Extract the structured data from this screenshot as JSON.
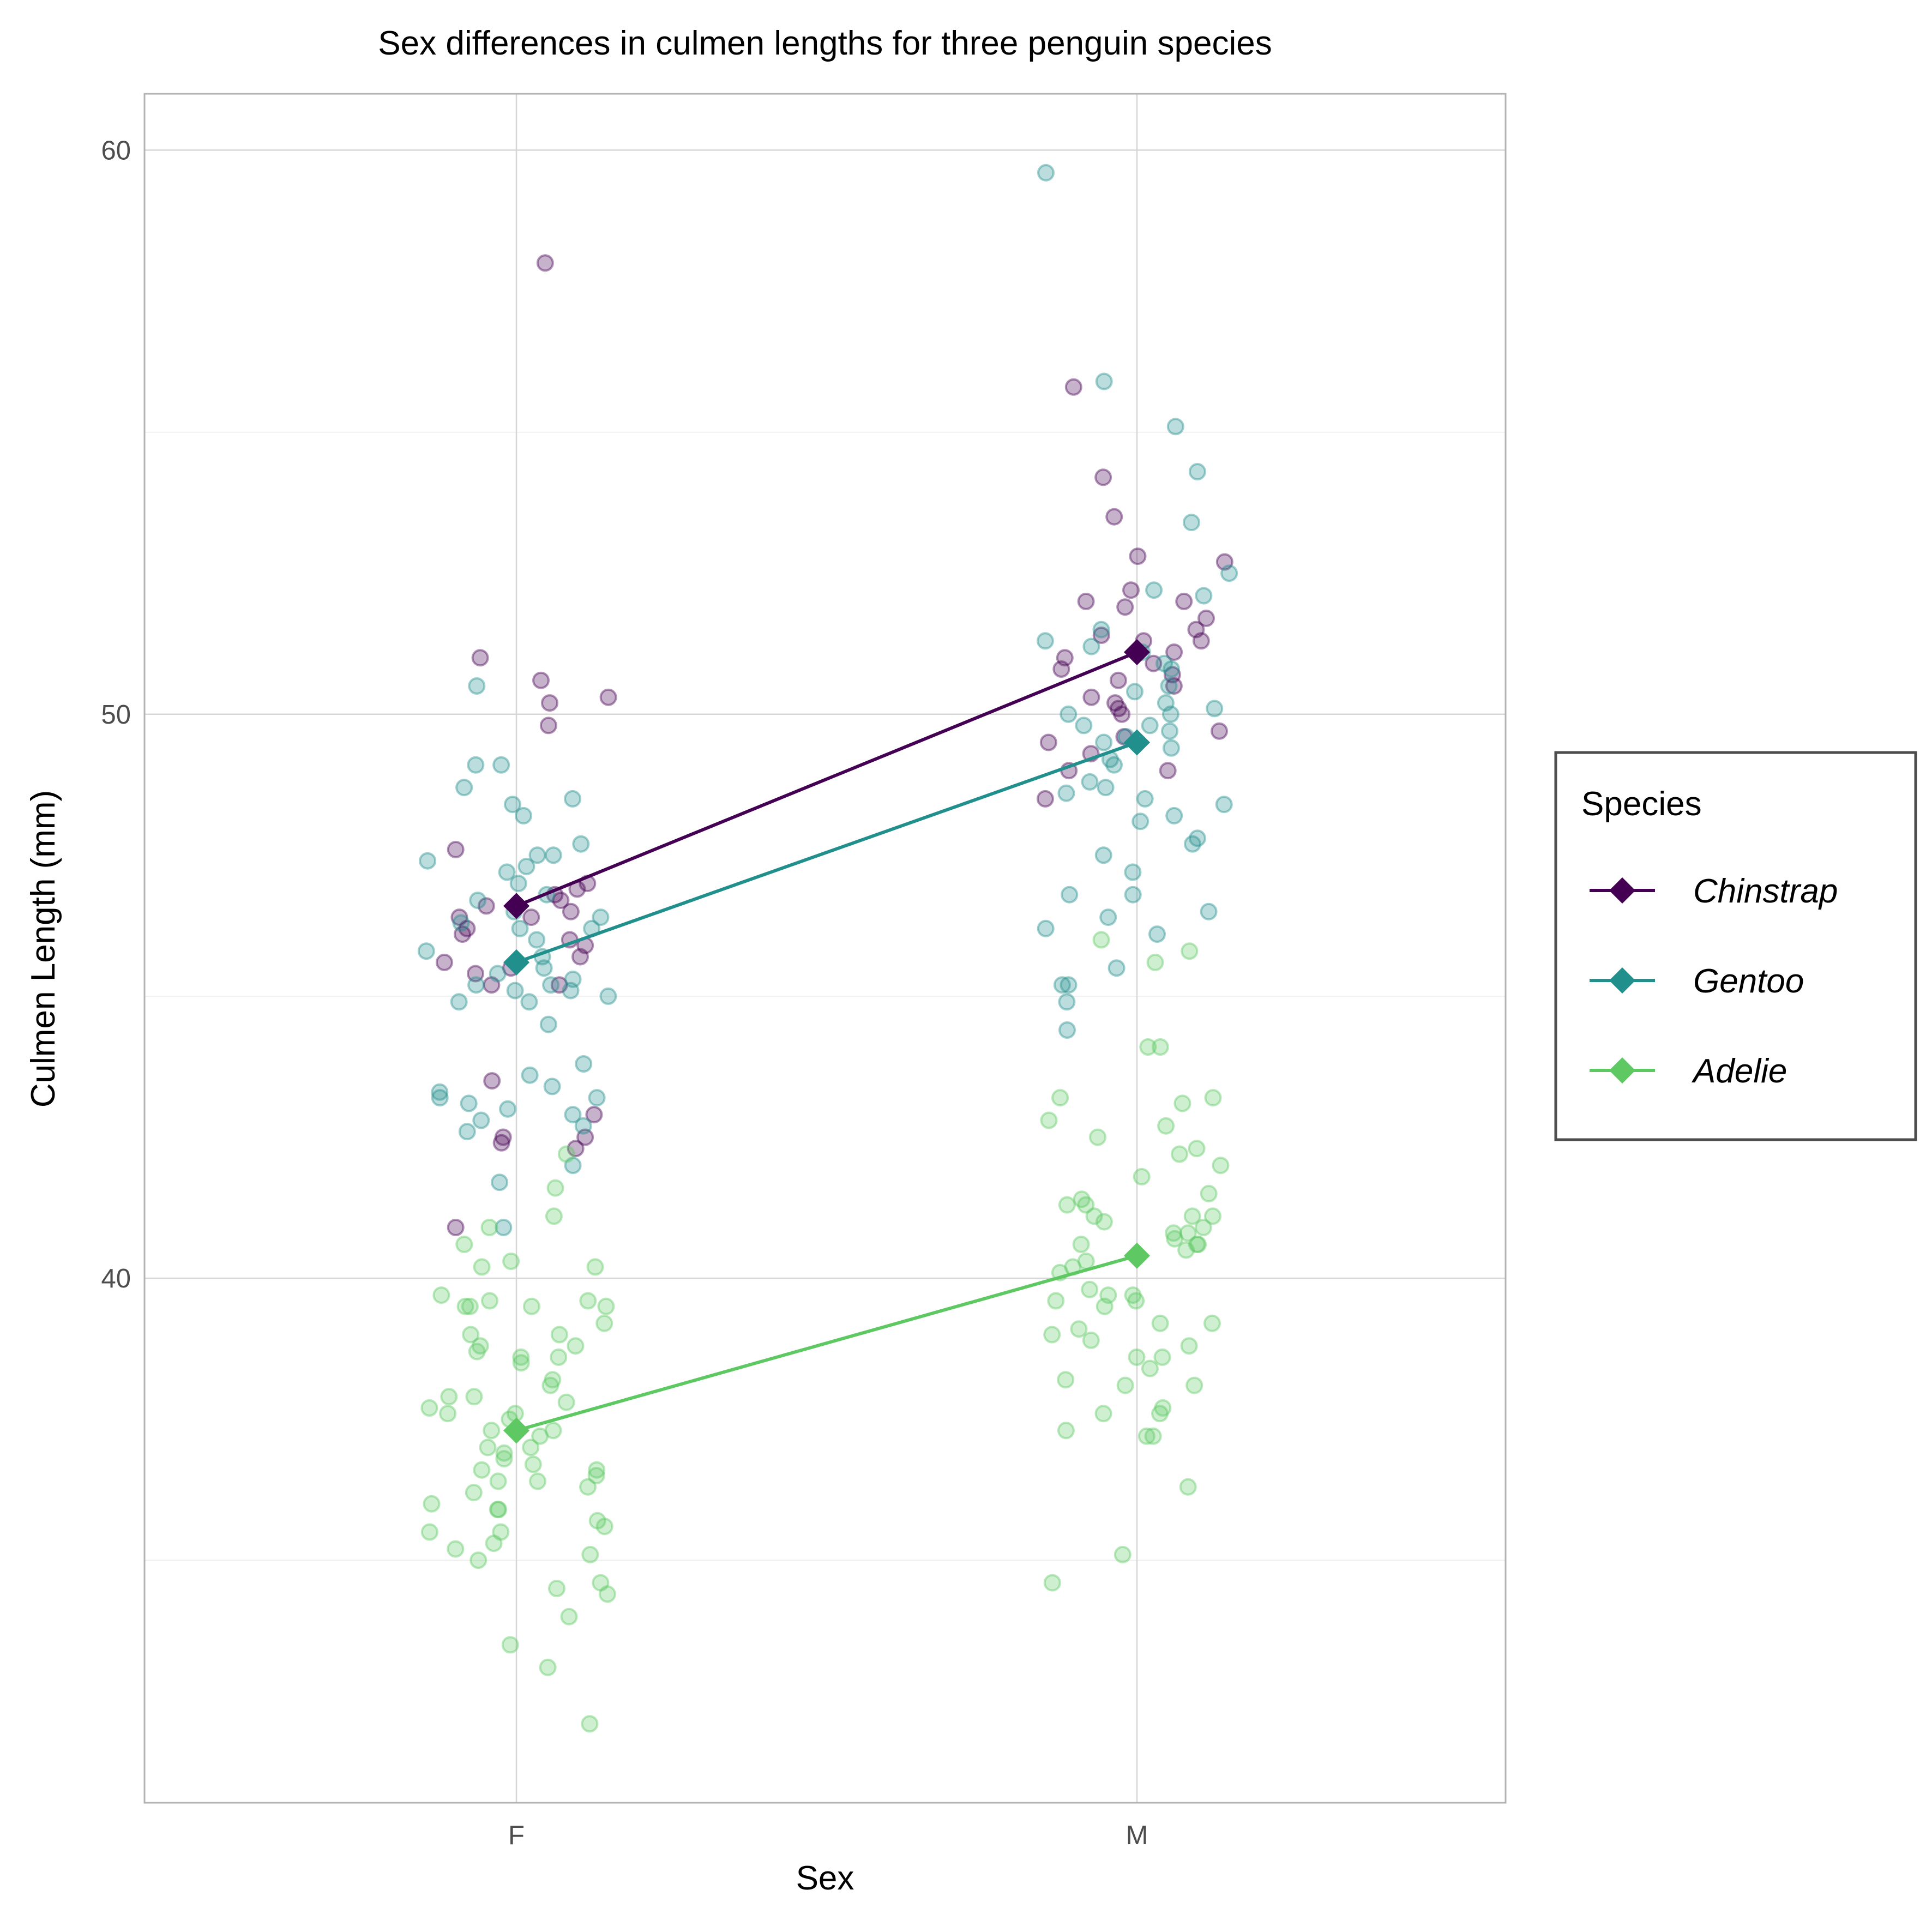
{
  "chart_data": {
    "type": "scatter",
    "title": "Sex differences in culmen lengths for three penguin species",
    "xlabel": "Sex",
    "ylabel": "Culmen Length (mm)",
    "categories": [
      "F",
      "M"
    ],
    "ylim": [
      30.7,
      61.0
    ],
    "y_ticks": [
      40,
      50,
      60
    ],
    "grid": true,
    "legend": {
      "title": "Species",
      "position": "right"
    },
    "series": [
      {
        "name": "Chinstrap",
        "color": "#440154",
        "means": [
          46.6,
          51.1
        ],
        "points": {
          "F": [
            58.0,
            51.0,
            50.6,
            50.3,
            50.2,
            49.8,
            47.6,
            47.0,
            46.8,
            46.9,
            46.7,
            46.6,
            46.5,
            46.4,
            46.4,
            46.2,
            46.1,
            46.0,
            45.9,
            45.7,
            45.6,
            45.5,
            45.2,
            45.2,
            45.4,
            43.5,
            42.9,
            42.5,
            42.4,
            42.5,
            42.3,
            40.9
          ],
          "M": [
            55.8,
            54.2,
            53.5,
            52.8,
            52.7,
            52.2,
            52.0,
            52.0,
            51.9,
            51.7,
            51.5,
            51.4,
            51.3,
            51.3,
            51.1,
            51.0,
            50.9,
            50.8,
            50.7,
            50.6,
            50.5,
            50.3,
            50.2,
            50.1,
            50.0,
            49.7,
            49.6,
            49.5,
            49.3,
            49.0,
            49.0,
            48.5
          ]
        }
      },
      {
        "name": "Gentoo",
        "color": "#21908d",
        "means": [
          45.6,
          49.5
        ],
        "points": {
          "F": [
            50.5,
            49.1,
            49.1,
            48.7,
            48.5,
            48.4,
            48.2,
            47.7,
            47.5,
            47.5,
            47.4,
            47.3,
            47.2,
            47.0,
            46.8,
            46.7,
            46.5,
            46.4,
            46.3,
            46.2,
            46.2,
            46.0,
            45.8,
            45.7,
            45.5,
            45.4,
            45.3,
            45.2,
            45.2,
            45.1,
            45.0,
            45.1,
            44.9,
            44.9,
            44.5,
            43.8,
            43.6,
            43.4,
            43.3,
            43.2,
            43.2,
            43.1,
            43.0,
            42.9,
            42.8,
            42.7,
            42.6,
            42.0,
            41.7,
            40.9
          ],
          "M": [
            59.6,
            55.9,
            55.1,
            54.3,
            53.4,
            52.5,
            52.2,
            52.1,
            51.5,
            51.3,
            51.2,
            51.1,
            50.9,
            50.8,
            50.5,
            50.4,
            50.2,
            50.1,
            50.0,
            50.0,
            49.8,
            49.8,
            49.7,
            49.6,
            49.5,
            49.4,
            49.2,
            49.1,
            48.8,
            48.7,
            48.6,
            48.5,
            48.4,
            48.2,
            48.1,
            47.8,
            47.7,
            47.5,
            47.2,
            46.8,
            46.8,
            46.5,
            46.4,
            46.2,
            46.1,
            45.5,
            45.2,
            45.2,
            44.9,
            44.4
          ]
        }
      },
      {
        "name": "Adelie",
        "color": "#5ec962",
        "means": [
          37.3,
          40.4
        ],
        "points": {
          "F": [
            42.2,
            41.6,
            41.1,
            40.9,
            40.6,
            40.3,
            40.2,
            40.2,
            39.7,
            39.6,
            39.6,
            39.5,
            39.5,
            39.5,
            39.5,
            39.2,
            39.0,
            39.0,
            38.8,
            38.8,
            38.7,
            38.6,
            38.6,
            38.5,
            38.2,
            38.1,
            37.9,
            37.9,
            37.8,
            37.7,
            37.6,
            37.6,
            37.5,
            37.3,
            37.3,
            37.2,
            37.0,
            37.0,
            36.9,
            36.8,
            36.7,
            36.6,
            36.6,
            36.5,
            36.4,
            36.4,
            36.3,
            36.2,
            36.0,
            35.9,
            35.9,
            35.7,
            35.6,
            35.5,
            35.5,
            35.3,
            35.2,
            35.1,
            35.0,
            34.6,
            34.5,
            34.4,
            34.0,
            33.5,
            33.1,
            32.1
          ],
          "M": [
            46.0,
            45.8,
            45.6,
            44.1,
            44.1,
            43.2,
            43.2,
            43.1,
            42.8,
            42.7,
            42.5,
            42.3,
            42.2,
            42.0,
            41.8,
            41.5,
            41.4,
            41.3,
            41.3,
            41.1,
            41.1,
            41.1,
            41.0,
            40.9,
            40.8,
            40.8,
            40.7,
            40.6,
            40.6,
            40.6,
            40.5,
            40.3,
            40.2,
            40.1,
            39.8,
            39.7,
            39.7,
            39.6,
            39.6,
            39.5,
            39.2,
            39.2,
            39.1,
            39.0,
            38.9,
            38.8,
            38.6,
            38.6,
            38.4,
            38.2,
            38.1,
            38.1,
            37.7,
            37.6,
            37.6,
            37.3,
            37.2,
            37.2,
            36.3,
            35.1,
            34.6
          ]
        }
      }
    ]
  }
}
